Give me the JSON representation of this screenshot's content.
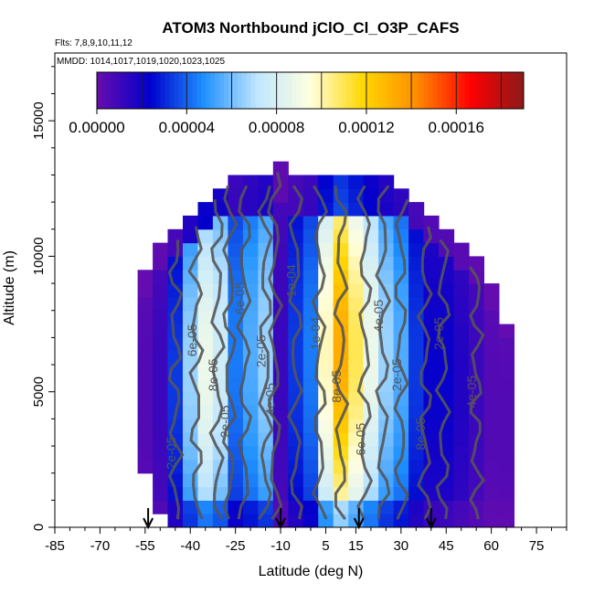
{
  "chart_data": {
    "type": "heatmap",
    "title": "ATOM3 Northbound jClO_Cl_O3P_CAFS",
    "subtitle_flights": "Flts: 7,8,9,10,11,12",
    "subtitle_dates": "MMDD: 1014,1017,1019,1020,1023,1025",
    "xlabel": "Latitude (deg N)",
    "ylabel": "Altitude (m)",
    "xlim": [
      -85,
      85
    ],
    "ylim": [
      0,
      17500
    ],
    "x_ticks": [
      -85,
      -70,
      -55,
      -40,
      -25,
      -10,
      5,
      15,
      30,
      45,
      60,
      75
    ],
    "x_tick_labels": [
      "-85",
      "-70",
      "-55",
      "-40",
      "-25",
      "-10",
      "5",
      "15",
      "30",
      "45",
      "60",
      "75"
    ],
    "y_ticks": [
      0,
      5000,
      10000,
      15000
    ],
    "y_tick_labels": [
      "0",
      "5000",
      "10000",
      "15000"
    ],
    "colorbar": {
      "range": [
        0,
        0.00019
      ],
      "ticks": [
        0,
        4e-05,
        8e-05,
        0.00012,
        0.00016
      ],
      "tick_labels": [
        "0.00000",
        "0.00004",
        "0.00008",
        "0.00012",
        "0.00016"
      ],
      "colors": [
        "#6a0dad",
        "#0000cd",
        "#1e90ff",
        "#bfe6ff",
        "#ffffe0",
        "#ffd700",
        "#ff8c00",
        "#ff0000",
        "#8b1a1a"
      ]
    },
    "contour_labels": [
      "2e-05",
      "6e-05",
      "8e-05",
      "2e-05",
      "6e-05",
      "2e-05",
      "4e-05",
      "1e-04",
      "1e-04",
      "8e-05",
      "6e-05",
      "4e-05",
      "2e-05",
      "8e-05",
      "2e-05",
      "4e-05"
    ],
    "arrows_at_latitude": [
      -54,
      -10,
      16,
      40
    ],
    "latitude_centers": [
      -55,
      -50,
      -45,
      -40,
      -35,
      -30,
      -25,
      -20,
      -15,
      -10,
      -5,
      0,
      5,
      10,
      15,
      20,
      25,
      30,
      35,
      40,
      45,
      50,
      55,
      60,
      65
    ],
    "altitude_top_m": [
      9500,
      10500,
      11000,
      11500,
      12000,
      12500,
      13000,
      13000,
      13000,
      13500,
      13000,
      13000,
      13000,
      13000,
      13000,
      13000,
      13000,
      12500,
      12000,
      11500,
      11000,
      10500,
      10000,
      9000,
      7500
    ],
    "altitude_bottom_m": [
      2000,
      500,
      0,
      0,
      0,
      0,
      0,
      0,
      0,
      0,
      0,
      0,
      0,
      0,
      0,
      0,
      0,
      0,
      0,
      0,
      0,
      0,
      0,
      0,
      0
    ],
    "value_profile_by_latitude": [
      5e-06,
      1e-05,
      3e-05,
      6e-05,
      8e-05,
      7e-05,
      4e-05,
      5e-05,
      6e-05,
      1e-05,
      3e-05,
      4e-05,
      9e-05,
      0.00012,
      0.0001,
      8e-05,
      6e-05,
      5e-05,
      3e-05,
      2e-05,
      2e-05,
      1.5e-05,
      1e-05,
      5e-06,
      5e-06
    ]
  }
}
